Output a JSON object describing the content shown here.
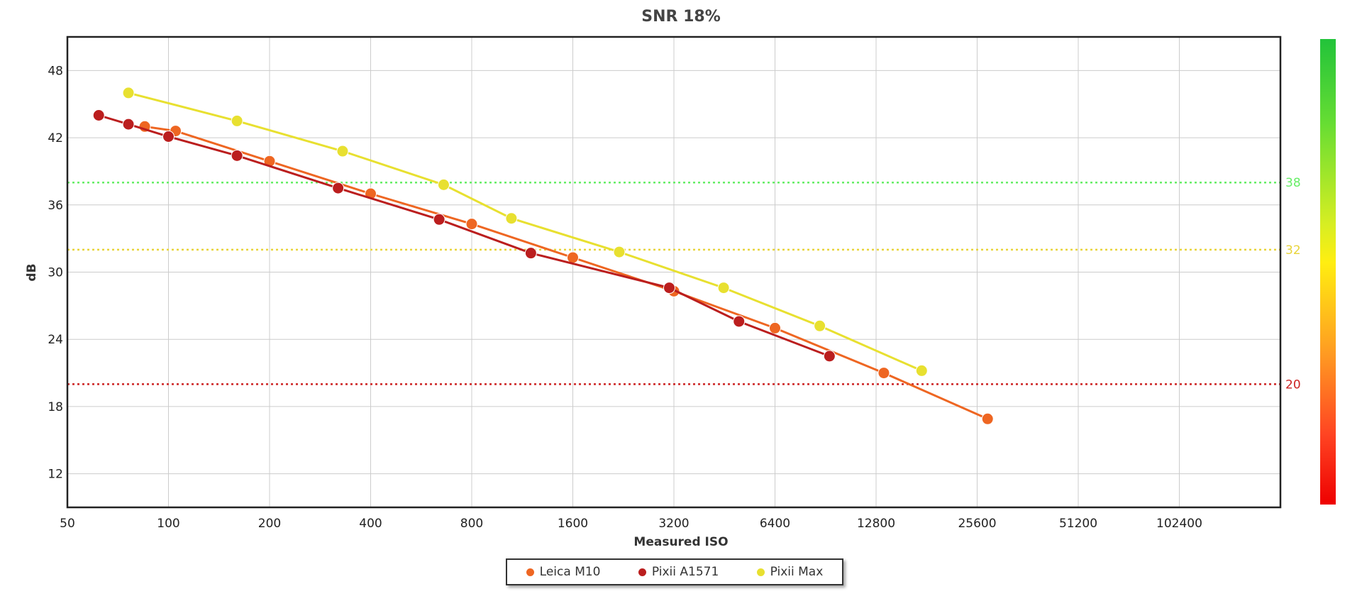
{
  "chart_data": {
    "type": "line",
    "title": "SNR 18%",
    "xlabel": "Measured ISO",
    "ylabel": "dB",
    "x_scale": "log2",
    "xlim": [
      50,
      204800
    ],
    "ylim": [
      9,
      51
    ],
    "x_ticks": [
      50,
      100,
      200,
      400,
      800,
      1600,
      3200,
      6400,
      12800,
      25600,
      51200,
      102400
    ],
    "y_ticks": [
      12,
      18,
      24,
      30,
      36,
      42,
      48
    ],
    "grid": true,
    "legend_position": "bottom-center",
    "reference_lines": [
      {
        "y": 38,
        "label": "38",
        "color": "#66ee66"
      },
      {
        "y": 32,
        "label": "32",
        "color": "#e8d43a"
      },
      {
        "y": 20,
        "label": "20",
        "color": "#cc2222"
      }
    ],
    "series": [
      {
        "name": "Leica M10",
        "color": "#ee6622",
        "points": [
          [
            85,
            43.0
          ],
          [
            105,
            42.6
          ],
          [
            200,
            39.9
          ],
          [
            400,
            37.0
          ],
          [
            800,
            34.3
          ],
          [
            1600,
            31.3
          ],
          [
            3200,
            28.3
          ],
          [
            6400,
            25.0
          ],
          [
            13500,
            21.0
          ],
          [
            27500,
            16.9
          ]
        ]
      },
      {
        "name": "Pixii A1571",
        "color": "#bb1e1e",
        "points": [
          [
            62,
            44.0
          ],
          [
            76,
            43.2
          ],
          [
            100,
            42.1
          ],
          [
            160,
            40.4
          ],
          [
            320,
            37.5
          ],
          [
            640,
            34.7
          ],
          [
            1200,
            31.7
          ],
          [
            3100,
            28.6
          ],
          [
            5000,
            25.6
          ],
          [
            9300,
            22.5
          ]
        ]
      },
      {
        "name": "Pixii Max",
        "color": "#e8e030",
        "points": [
          [
            76,
            46.0
          ],
          [
            160,
            43.5
          ],
          [
            330,
            40.8
          ],
          [
            660,
            37.8
          ],
          [
            1050,
            34.8
          ],
          [
            2200,
            31.8
          ],
          [
            4500,
            28.6
          ],
          [
            8700,
            25.2
          ],
          [
            17500,
            21.2
          ]
        ]
      }
    ]
  }
}
